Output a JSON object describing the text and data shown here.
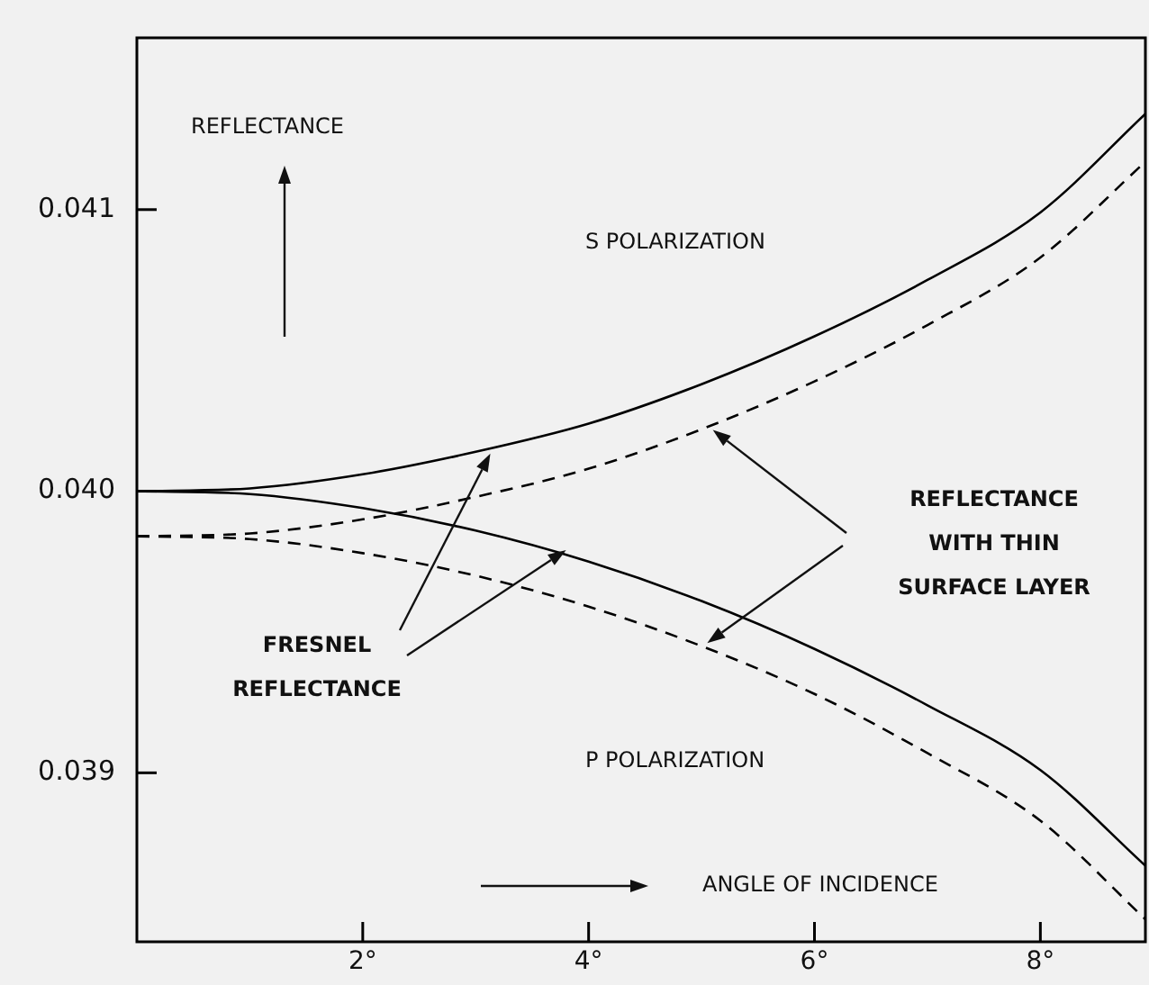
{
  "chart_data": {
    "type": "line",
    "xlabel": "ANGLE OF INCIDENCE",
    "ylabel": "REFLECTANCE",
    "x": [
      0,
      1,
      2,
      3,
      4,
      5,
      6,
      7,
      8,
      8.93
    ],
    "series": [
      {
        "color": "#000000",
        "line_style": "solid",
        "values": [
          0.04,
          0.04001,
          0.04006,
          0.04014,
          0.04024,
          0.04038,
          0.04055,
          0.04075,
          0.04099,
          0.04134
        ]
      },
      {
        "color": "#000000",
        "line_style": "dashed",
        "values": [
          0.03984,
          0.03985,
          0.0399,
          0.03998,
          0.04008,
          0.04022,
          0.04039,
          0.04059,
          0.04083,
          0.04117
        ]
      },
      {
        "color": "#000000",
        "line_style": "solid",
        "values": [
          0.04,
          0.03999,
          0.03994,
          0.03986,
          0.03975,
          0.03961,
          0.03944,
          0.03924,
          0.03901,
          0.03867
        ]
      },
      {
        "color": "#000000",
        "line_style": "dashed",
        "values": [
          0.03984,
          0.03983,
          0.03978,
          0.0397,
          0.03959,
          0.03945,
          0.03928,
          0.03907,
          0.03883,
          0.03848
        ]
      }
    ],
    "xlim": [
      0,
      8.93
    ],
    "ylim": [
      0.0384,
      0.04161
    ],
    "xticks": [
      {
        "value": 2,
        "label": "2°"
      },
      {
        "value": 4,
        "label": "4°"
      },
      {
        "value": 6,
        "label": "6°"
      },
      {
        "value": 8,
        "label": "8°"
      }
    ],
    "yticks": [
      {
        "value": 0.039,
        "label": "0.039"
      },
      {
        "value": 0.04,
        "label": "0.040"
      },
      {
        "value": 0.041,
        "label": "0.041"
      }
    ],
    "grid": false,
    "legend": false,
    "marker": "none",
    "annotations": [
      "S POLARIZATION",
      "P POLARIZATION",
      "FRESNEL\nREFLECTANCE",
      "REFLECTANCE\nWITH THIN\nSURFACE LAYER"
    ]
  }
}
